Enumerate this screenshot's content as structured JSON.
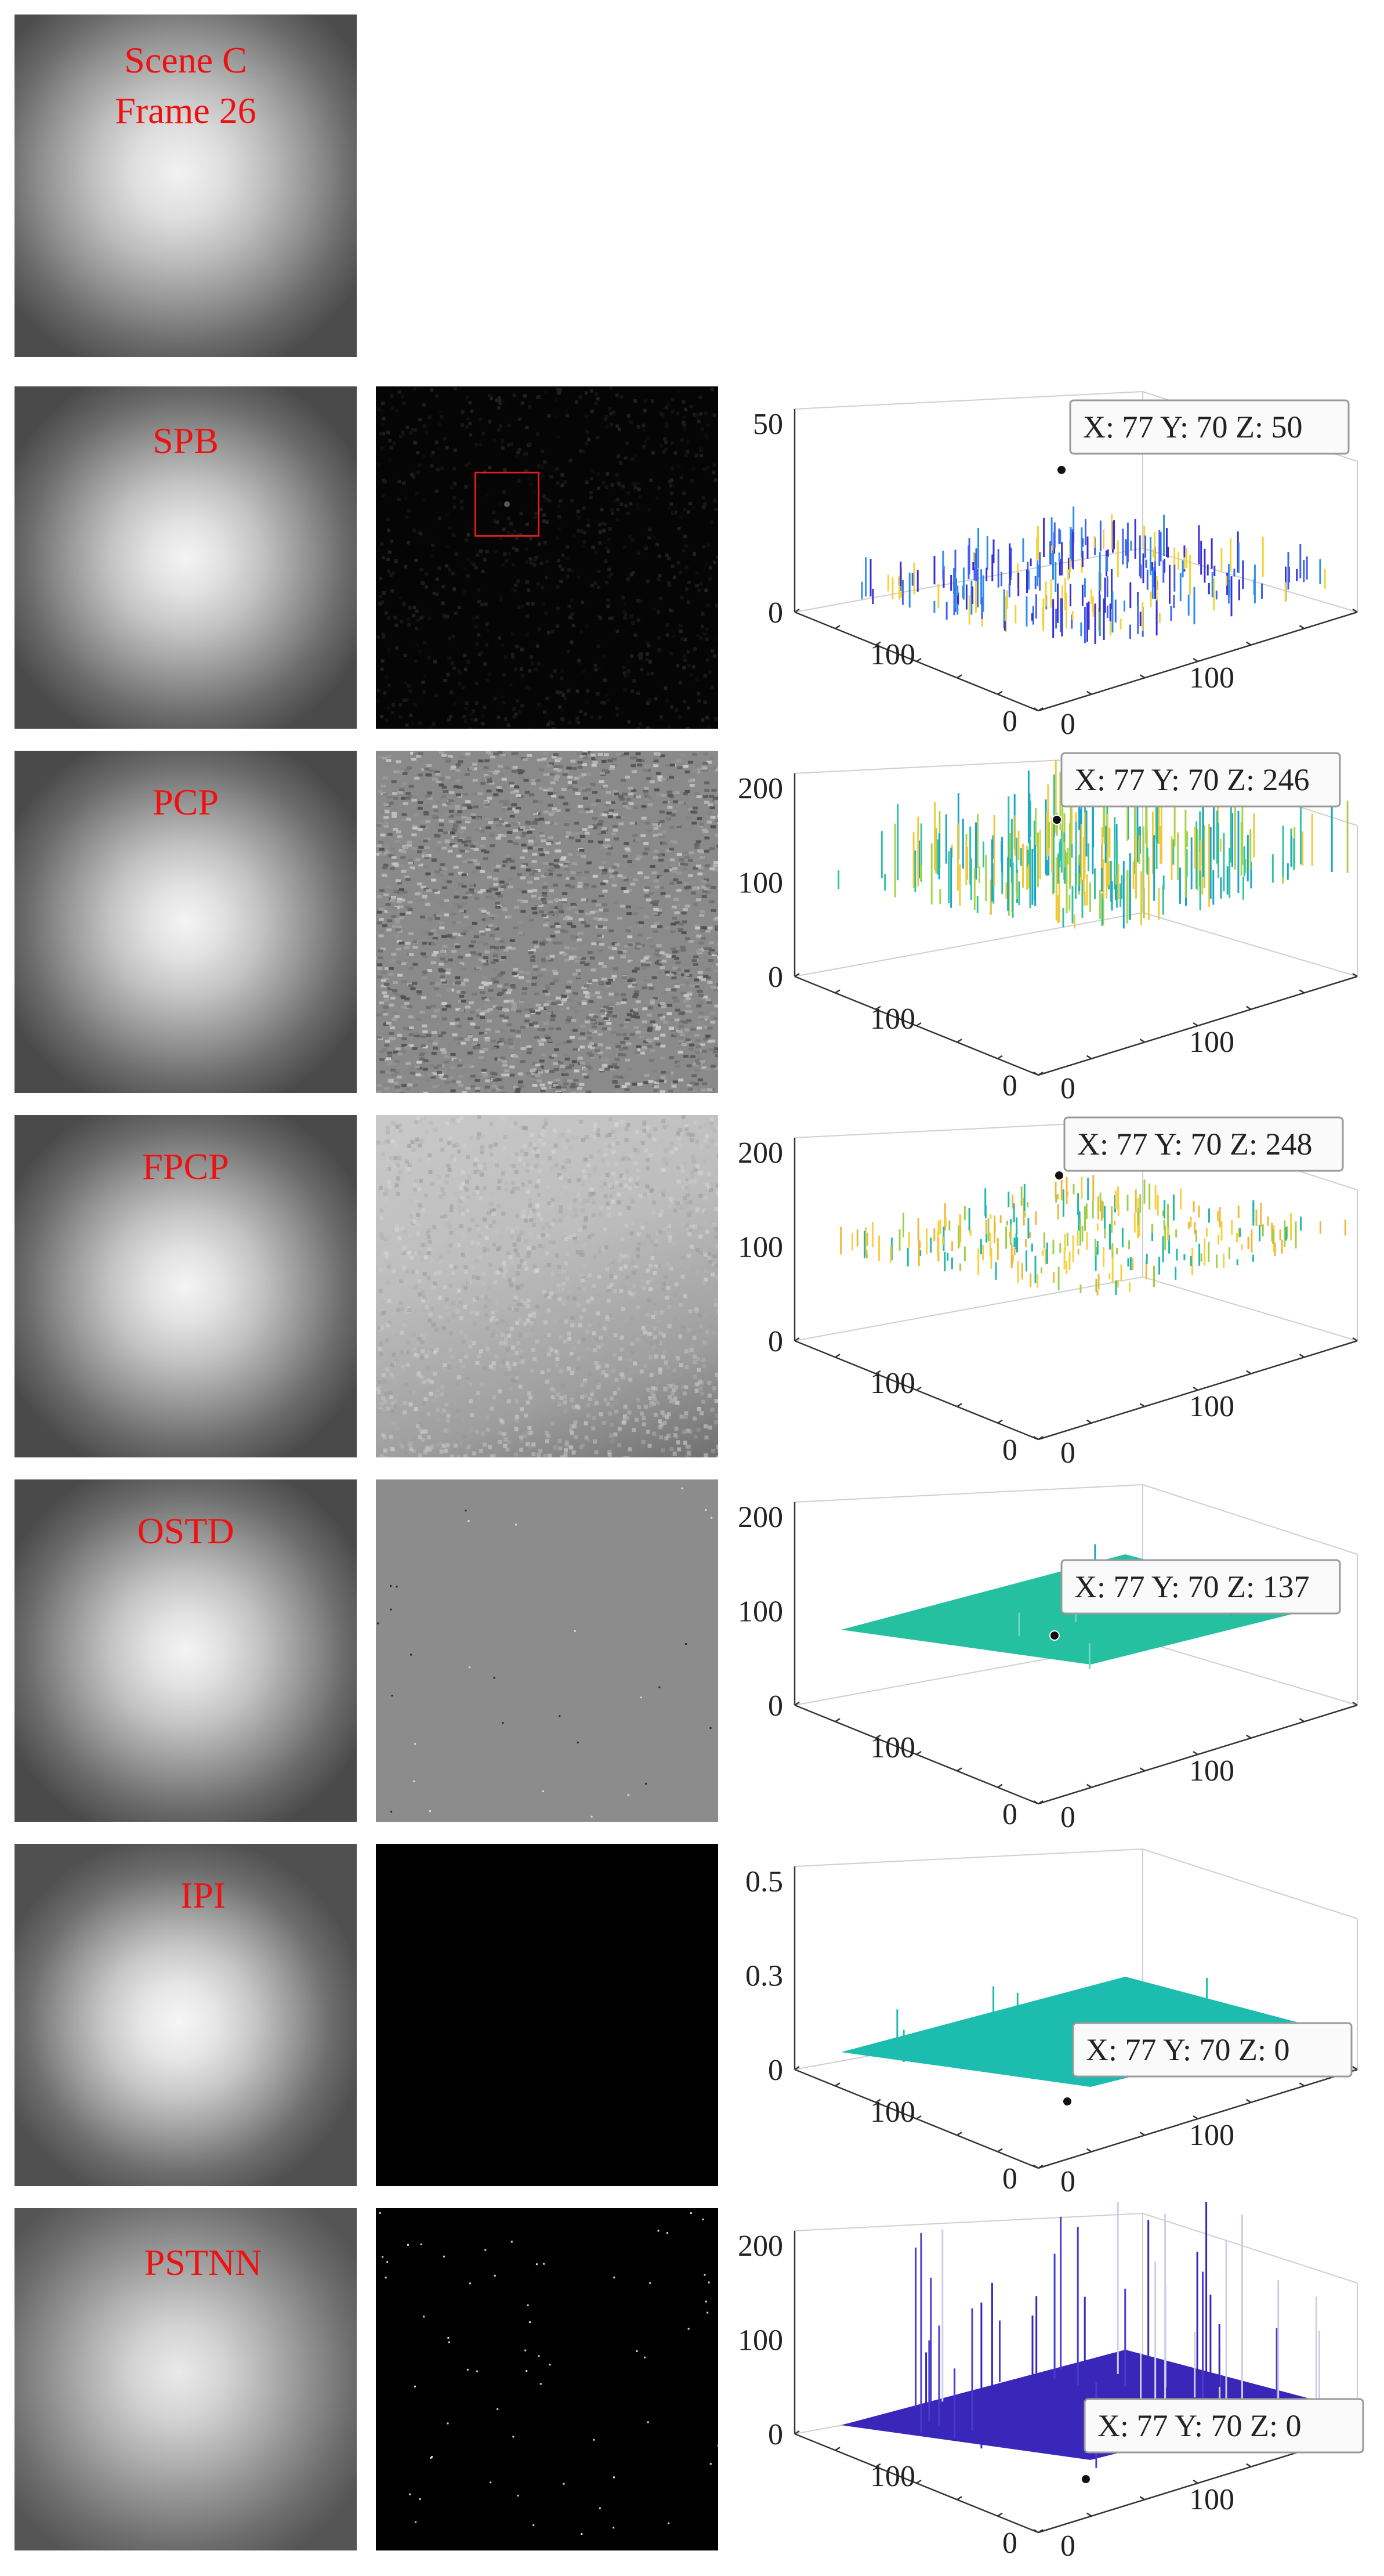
{
  "scene_title": "Scene C",
  "frame_title": "Frame 26",
  "rows": [
    {
      "method": "SPB",
      "z_ticks": [
        "50",
        "0"
      ],
      "xy_ticks": [
        "100",
        "0",
        "0",
        "100"
      ],
      "tooltip": "X: 77 Y: 70 Z: 50",
      "colors": [
        "#3b2fd6",
        "#3f62f0",
        "#2f8fe8",
        "#f2d33a"
      ]
    },
    {
      "method": "PCP",
      "z_ticks": [
        "200",
        "100",
        "0"
      ],
      "xy_ticks": [
        "100",
        "0",
        "0",
        "100"
      ],
      "tooltip": "X: 77 Y: 70 Z: 246",
      "colors": [
        "#1aa6c8",
        "#35c0a0",
        "#a8d24a",
        "#f0c93a"
      ]
    },
    {
      "method": "FPCP",
      "z_ticks": [
        "200",
        "100",
        "0"
      ],
      "xy_ticks": [
        "100",
        "0",
        "0",
        "100"
      ],
      "tooltip": "X: 77 Y: 70 Z: 248",
      "colors": [
        "#23b8a8",
        "#9fcf4a",
        "#f0b83a",
        "#f6d040"
      ]
    },
    {
      "method": "OSTD",
      "z_ticks": [
        "200",
        "100",
        "0"
      ],
      "xy_ticks": [
        "100",
        "0",
        "0",
        "100"
      ],
      "tooltip": "X: 77 Y: 70 Z: 137",
      "colors": [
        "#25c0a0",
        "#1a9fd0",
        "#6fd9c4"
      ]
    },
    {
      "method": "IPI",
      "z_ticks": [
        "0.5",
        "0.3",
        "0"
      ],
      "xy_ticks": [
        "100",
        "0",
        "0",
        "100"
      ],
      "tooltip": "X: 77 Y: 70 Z: 0",
      "colors": [
        "#1cbcae"
      ]
    },
    {
      "method": "PSTNN",
      "z_ticks": [
        "200",
        "100",
        "0"
      ],
      "xy_ticks": [
        "100",
        "0",
        "0",
        "100"
      ],
      "tooltip": "X: 77 Y: 70 Z: 0",
      "colors": [
        "#3a26b8",
        "#4a3ad0",
        "#cfcfe8"
      ]
    }
  ]
}
